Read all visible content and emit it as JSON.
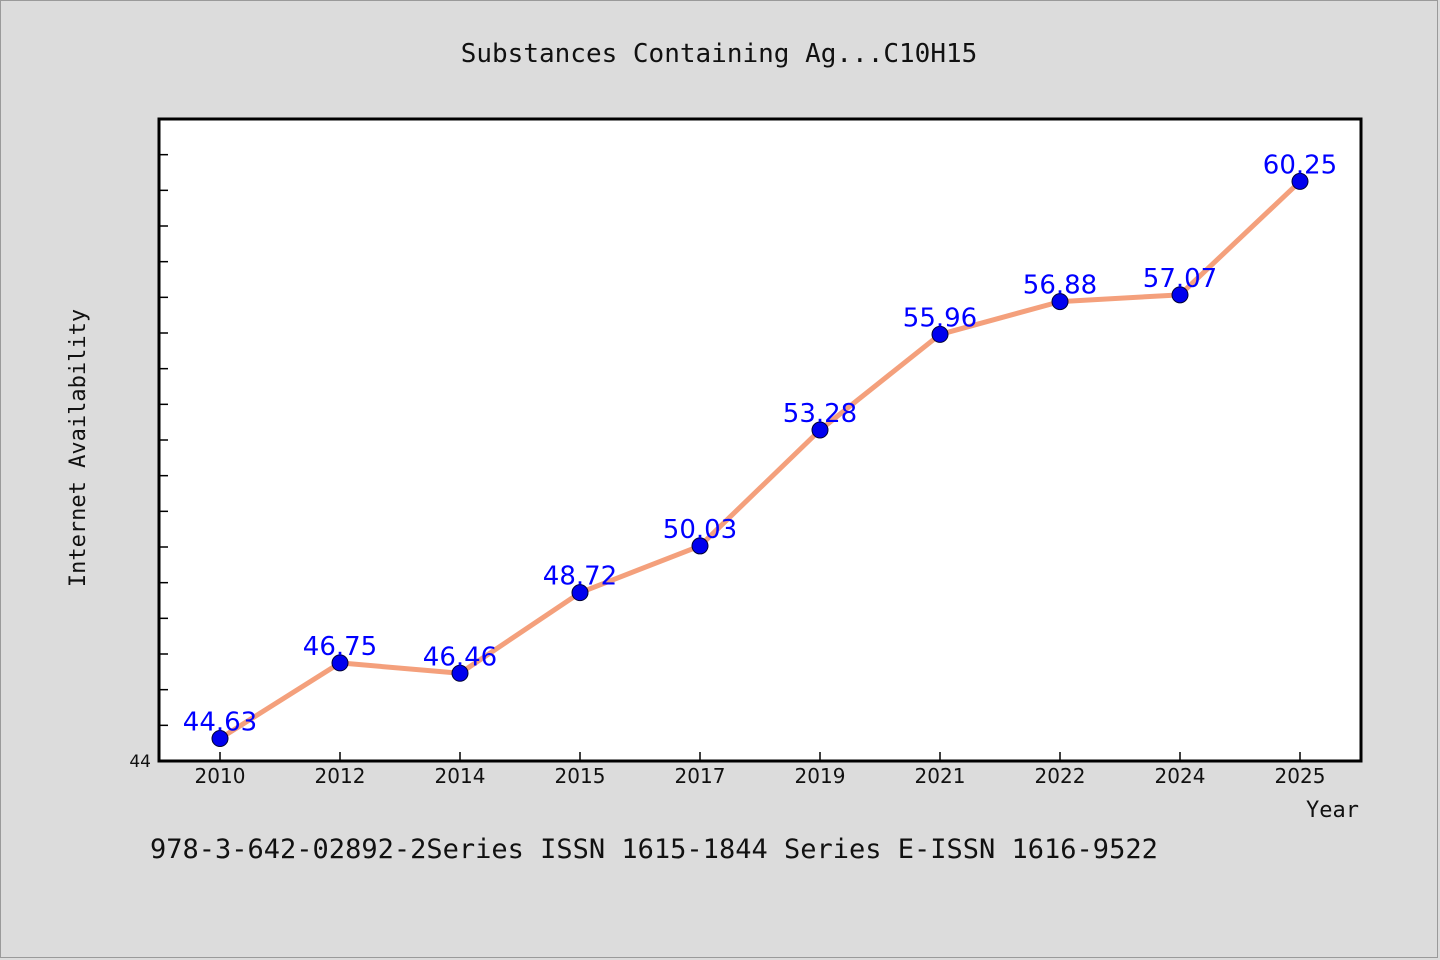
{
  "chart_data": {
    "type": "line",
    "title": "Substances Containing Ag...C10H15",
    "xlabel": "Year",
    "ylabel": "Internet Availability",
    "categories": [
      "2010",
      "2012",
      "2014",
      "2015",
      "2017",
      "2019",
      "2021",
      "2022",
      "2024",
      "2025"
    ],
    "series": [
      {
        "values": [
          44.63,
          46.75,
          46.46,
          48.72,
          50.03,
          53.28,
          55.96,
          56.88,
          57.07,
          60.25
        ],
        "labels": [
          "44.63",
          "46.75",
          "46.46",
          "48.72",
          "50.03",
          "53.28",
          "55.96",
          "56.88",
          "57.07",
          "60.25"
        ]
      }
    ],
    "ylim": [
      44,
      62
    ],
    "y_tick_label": "44",
    "grid": false,
    "legend": "none",
    "colors": {
      "line": "#f4a07c",
      "marker": "#0000ee",
      "data_label": "#0000ff",
      "plot_background": "#ffffff",
      "page_background": "#dcdcdc"
    }
  },
  "footnote": "978-3-642-02892-2Series ISSN 1615-1844 Series E-ISSN 1616-9522"
}
